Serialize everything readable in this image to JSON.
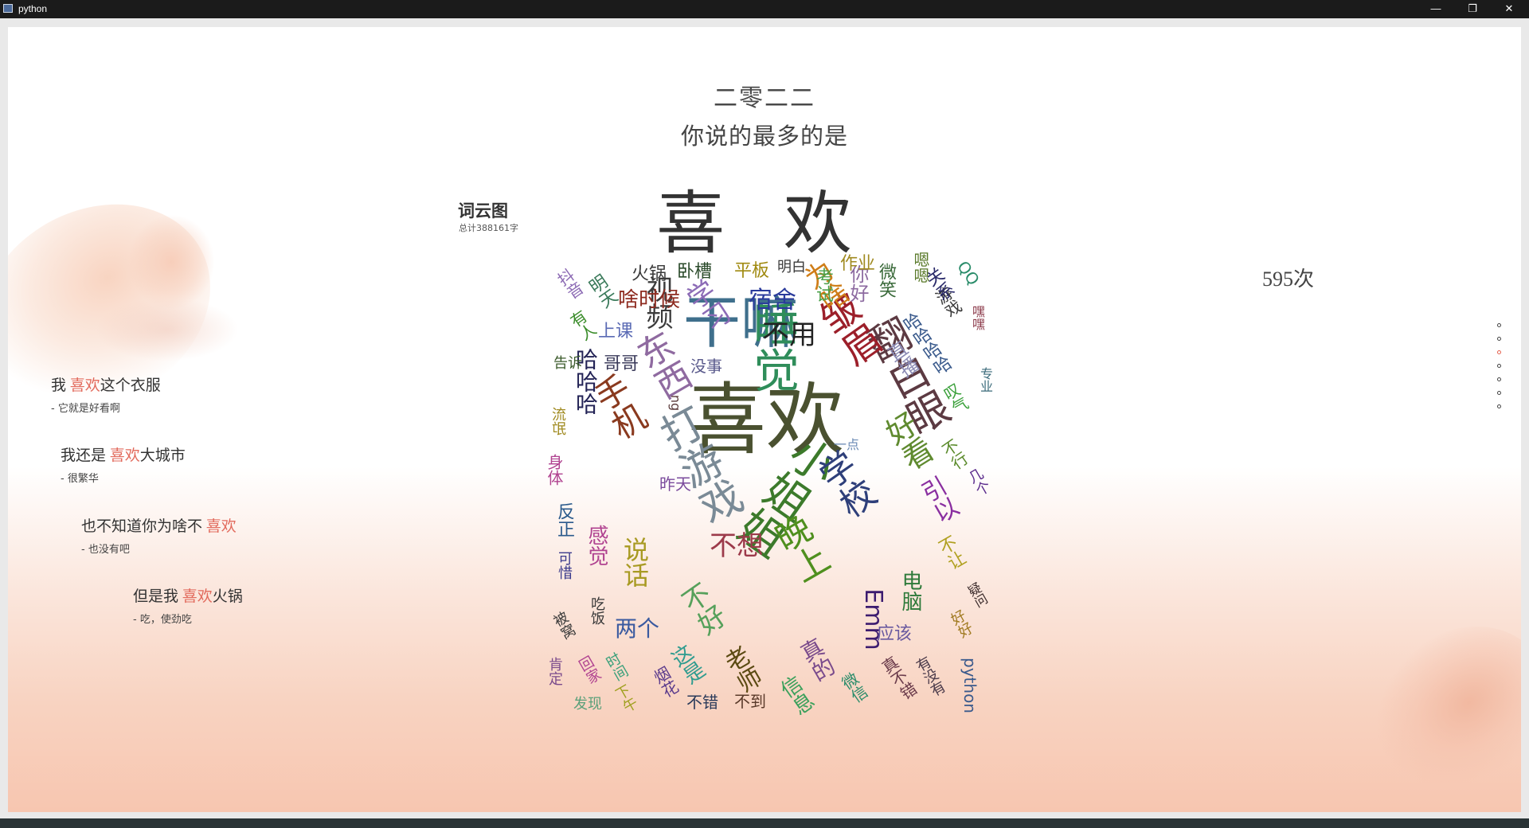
{
  "window": {
    "title": "python",
    "minimize": "—",
    "restore": "❐",
    "close": "✕"
  },
  "header": {
    "year": "二零二二",
    "subtitle": "你说的最多的是",
    "top_word": "喜 欢"
  },
  "wordcloud_info": {
    "title": "词云图",
    "total": "总计388161字"
  },
  "count": "595次",
  "phrases": [
    {
      "before": "我 ",
      "highlight": "喜欢",
      "after": "这个衣服",
      "note": "- 它就是好看啊"
    },
    {
      "before": "我还是 ",
      "highlight": "喜欢",
      "after": "大城市",
      "note": "- 很繁华"
    },
    {
      "before": "也不知道你为啥不 ",
      "highlight": "喜欢",
      "after": "",
      "note": "- 也没有吧"
    },
    {
      "before": "但是我 ",
      "highlight": "喜欢",
      "after": "火锅",
      "note": "- 吃，使劲吃"
    }
  ],
  "dots": {
    "count": 7,
    "active_index": 2,
    "active_color": "#e5614e"
  },
  "wordcloud": [
    {
      "t": "喜欢",
      "c": "#4a5130"
    },
    {
      "t": "干嘛",
      "c": "#3f6f8c"
    },
    {
      "t": "睡觉",
      "c": "#2f8d5a"
    },
    {
      "t": "翻白眼",
      "c": "#5c3a42"
    },
    {
      "t": "打游戏",
      "c": "#7a8a96"
    },
    {
      "t": "小姐姐",
      "c": "#3c7a2b"
    },
    {
      "t": "东西",
      "c": "#8f6aa0"
    },
    {
      "t": "皱眉",
      "c": "#9c1f2a"
    },
    {
      "t": "晚上",
      "c": "#4f8f1e"
    },
    {
      "t": "学校",
      "c": "#2e3f7a"
    },
    {
      "t": "手机",
      "c": "#8a3a1f"
    },
    {
      "t": "好看",
      "c": "#5f8a2f"
    },
    {
      "t": "视频",
      "c": "#3c3c3c"
    },
    {
      "t": "为啥",
      "c": "#cf7d18"
    },
    {
      "t": "宿舍",
      "c": "#2a3a9c"
    },
    {
      "t": "不用",
      "c": "#222222"
    },
    {
      "t": "学习",
      "c": "#8c6bb6"
    },
    {
      "t": "啥时候",
      "c": "#8e2b20"
    },
    {
      "t": "哈哈哈",
      "c": "#222255"
    },
    {
      "t": "说话",
      "c": "#a89a22"
    },
    {
      "t": "不好",
      "c": "#56a05b"
    },
    {
      "t": "老师",
      "c": "#5b4a12"
    },
    {
      "t": "Emm",
      "c": "#3c1b6f"
    },
    {
      "t": "真的",
      "c": "#7a4b8c"
    },
    {
      "t": "不想",
      "c": "#9c3a4a"
    },
    {
      "t": "感觉",
      "c": "#b04290"
    },
    {
      "t": "两个",
      "c": "#3a5aa0"
    },
    {
      "t": "这是",
      "c": "#2f9c8f"
    },
    {
      "t": "信息",
      "c": "#3aa05b"
    },
    {
      "t": "应该",
      "c": "#6a5aa0"
    },
    {
      "t": "电脑",
      "c": "#2e7a3a"
    },
    {
      "t": "引以",
      "c": "#8a2fa0"
    },
    {
      "t": "不让",
      "c": "#b0a020"
    },
    {
      "t": "直播",
      "c": "#8a8ab4"
    },
    {
      "t": "你好",
      "c": "#8c6aa0"
    },
    {
      "t": "微笑",
      "c": "#3a6a3a"
    },
    {
      "t": "哈哈哈哈",
      "c": "#3a5a8c"
    },
    {
      "t": "游戏",
      "c": "#3a3a3a"
    },
    {
      "t": "关系",
      "c": "#2a2a6a"
    },
    {
      "t": "QQ",
      "c": "#2a8c6a"
    },
    {
      "t": "嗯嗯",
      "c": "#5a7a2a"
    },
    {
      "t": "作业",
      "c": "#a08a20"
    },
    {
      "t": "考试",
      "c": "#4aa04a"
    },
    {
      "t": "平板",
      "c": "#a08a10"
    },
    {
      "t": "明白",
      "c": "#3a3a3a"
    },
    {
      "t": "卧槽",
      "c": "#2a4a2a"
    },
    {
      "t": "火锅",
      "c": "#3a3a3a"
    },
    {
      "t": "明天",
      "c": "#3a7a5a"
    },
    {
      "t": "抖音",
      "c": "#8c6ab4"
    },
    {
      "t": "有人",
      "c": "#3a8c2a"
    },
    {
      "t": "上课",
      "c": "#5a6ab4"
    },
    {
      "t": "告诉",
      "c": "#3a5a2a"
    },
    {
      "t": "哥哥",
      "c": "#3a3a5a"
    },
    {
      "t": "没事",
      "c": "#5a5a8c"
    },
    {
      "t": "ng",
      "c": "#5a3a3a"
    },
    {
      "t": "流氓",
      "c": "#a08a20"
    },
    {
      "t": "身体",
      "c": "#b04290"
    },
    {
      "t": "昨天",
      "c": "#7a4a9c"
    },
    {
      "t": "一点",
      "c": "#6a8ab4"
    },
    {
      "t": "反正",
      "c": "#2a5a8c"
    },
    {
      "t": "可惜",
      "c": "#3a3a8c"
    },
    {
      "t": "吃饭",
      "c": "#3a3a3a"
    },
    {
      "t": "被窝",
      "c": "#3a3a3a"
    },
    {
      "t": "时间",
      "c": "#3aa07a"
    },
    {
      "t": "回家",
      "c": "#b04290"
    },
    {
      "t": "肯定",
      "c": "#7a4a8c"
    },
    {
      "t": "发现",
      "c": "#5aa07a"
    },
    {
      "t": "下午",
      "c": "#a0a020"
    },
    {
      "t": "烟花",
      "c": "#5a3a8c"
    },
    {
      "t": "不错",
      "c": "#2a3a5a"
    },
    {
      "t": "不到",
      "c": "#5a3a2a"
    },
    {
      "t": "微信",
      "c": "#2a8c6a"
    },
    {
      "t": "真不错",
      "c": "#6a3a4a"
    },
    {
      "t": "有没有",
      "c": "#4a3a4a"
    },
    {
      "t": "python",
      "c": "#3a5a8c"
    },
    {
      "t": "好好",
      "c": "#a07a20"
    },
    {
      "t": "疑问",
      "c": "#3a2a2a"
    },
    {
      "t": "不行",
      "c": "#5a8a2a"
    },
    {
      "t": "几个",
      "c": "#5a2a8c"
    },
    {
      "t": "叹气",
      "c": "#3aa03a"
    },
    {
      "t": "专业",
      "c": "#3a6a7a"
    },
    {
      "t": "嘿嘿",
      "c": "#8c3a4a"
    }
  ]
}
